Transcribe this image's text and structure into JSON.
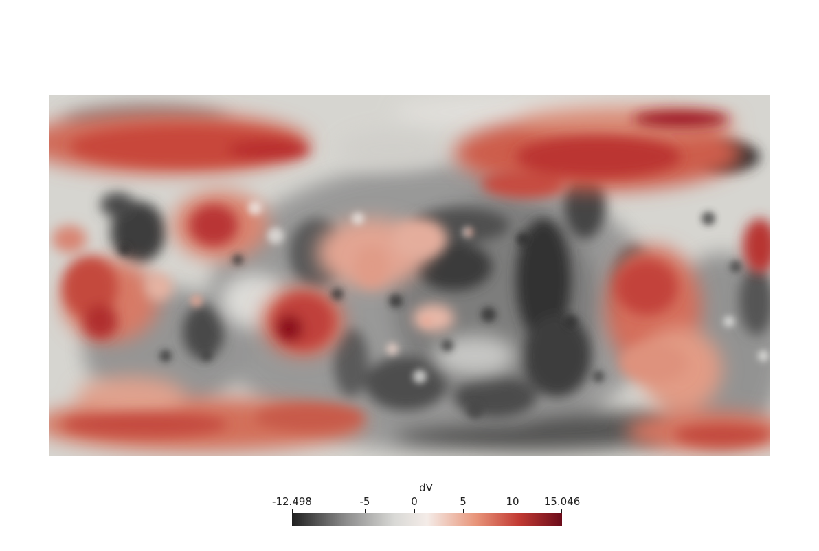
{
  "legend": {
    "title": "dV",
    "min_label": "-12.498",
    "max_label": "15.046",
    "range": [
      -12.498,
      15.046
    ],
    "ticks": [
      {
        "value": -12.498,
        "label": "-12.498"
      },
      {
        "value": -5,
        "label": "-5"
      },
      {
        "value": 0,
        "label": "0"
      },
      {
        "value": 5,
        "label": "5"
      },
      {
        "value": 10,
        "label": "10"
      },
      {
        "value": 15.046,
        "label": "15.046"
      }
    ],
    "colormap": {
      "low": "#202020",
      "mid": "#f0f0f0",
      "high": "#6b0b1a",
      "stops": [
        "#202020",
        "#8c8c8c",
        "#d9d9d6",
        "#f4ece8",
        "#e8957a",
        "#c23a33",
        "#6b0b1a"
      ]
    }
  },
  "colors": {
    "positive": "#c8433a",
    "positive_dark": "#8b0f1e",
    "neutral": "#d8d7d2",
    "negative": "#2a2a2a"
  }
}
